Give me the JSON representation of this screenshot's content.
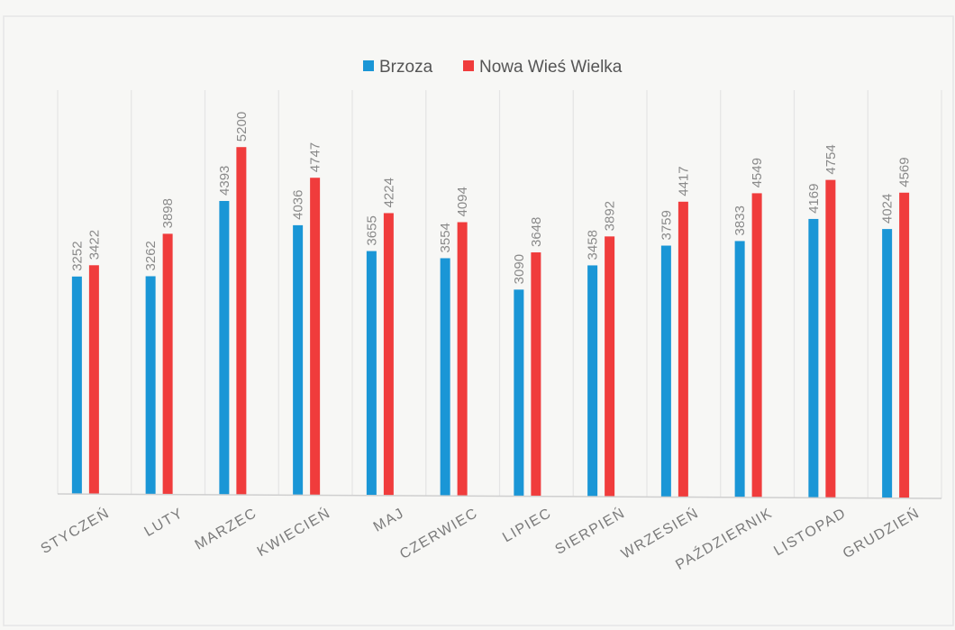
{
  "chart_data": {
    "type": "bar",
    "title": "",
    "xlabel": "",
    "ylabel": "",
    "categories": [
      "STYCZEŃ",
      "LUTY",
      "MARZEC",
      "KWIECIEŃ",
      "MAJ",
      "CZERWIEC",
      "LIPIEC",
      "SIERPIEŃ",
      "WRZESIEŃ",
      "PAŹDZIERNIK",
      "LISTOPAD",
      "GRUDZIEŃ"
    ],
    "series": [
      {
        "name": "Brzoza",
        "color": "#1a96d6",
        "values": [
          3252,
          3262,
          4393,
          4036,
          3655,
          3554,
          3090,
          3458,
          3759,
          3833,
          4169,
          4024
        ]
      },
      {
        "name": "Nowa Wieś Wielka",
        "color": "#f03c3c",
        "values": [
          3422,
          3898,
          5200,
          4747,
          4224,
          4094,
          3648,
          3892,
          4417,
          4549,
          4754,
          4569
        ]
      }
    ],
    "ylim": [
      0,
      5400
    ],
    "grid": "vertical",
    "legend": "top-center",
    "data_labels": true
  }
}
